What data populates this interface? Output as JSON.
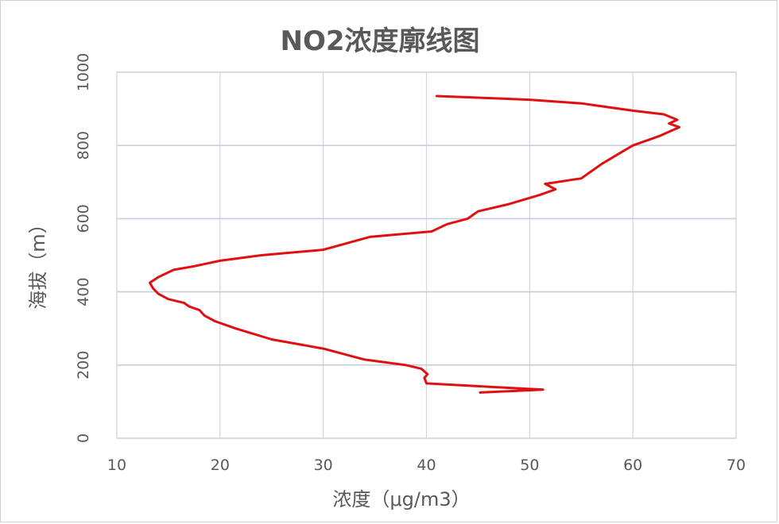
{
  "chart_data": {
    "type": "line",
    "title": "NO2浓度廓线图",
    "xlabel": "浓度（μg/m3）",
    "ylabel": "海拔（m）",
    "xlim": [
      10,
      70
    ],
    "ylim": [
      0,
      1000
    ],
    "x_ticks": [
      10,
      20,
      30,
      40,
      50,
      60,
      70
    ],
    "y_ticks": [
      0,
      200,
      400,
      600,
      800,
      1000
    ],
    "grid": true,
    "legend": "none",
    "series": [
      {
        "color": "#e01010",
        "x": [
          45.2,
          49.0,
          51.3,
          46.5,
          40.0,
          39.8,
          40.1,
          39.5,
          38.0,
          34.0,
          30.0,
          25.0,
          21.5,
          19.5,
          18.5,
          18.0,
          17.0,
          16.5,
          15.0,
          14.0,
          13.5,
          13.2,
          14.0,
          15.5,
          17.5,
          20.0,
          24.0,
          30.0,
          34.5,
          40.5,
          42.0,
          44.0,
          45.0,
          48.0,
          51.0,
          52.5,
          51.5,
          55.0,
          56.0,
          57.0,
          58.5,
          60.0,
          62.5,
          64.5,
          63.5,
          64.3,
          63.0,
          60.0,
          55.0,
          50.0,
          41.0
        ],
        "y": [
          125,
          130,
          133,
          140,
          150,
          165,
          175,
          190,
          200,
          215,
          245,
          270,
          300,
          320,
          335,
          350,
          360,
          370,
          380,
          395,
          410,
          425,
          440,
          460,
          470,
          485,
          500,
          515,
          550,
          565,
          585,
          600,
          620,
          640,
          665,
          680,
          695,
          710,
          730,
          750,
          775,
          800,
          825,
          850,
          860,
          870,
          885,
          895,
          915,
          925,
          935
        ]
      }
    ]
  }
}
